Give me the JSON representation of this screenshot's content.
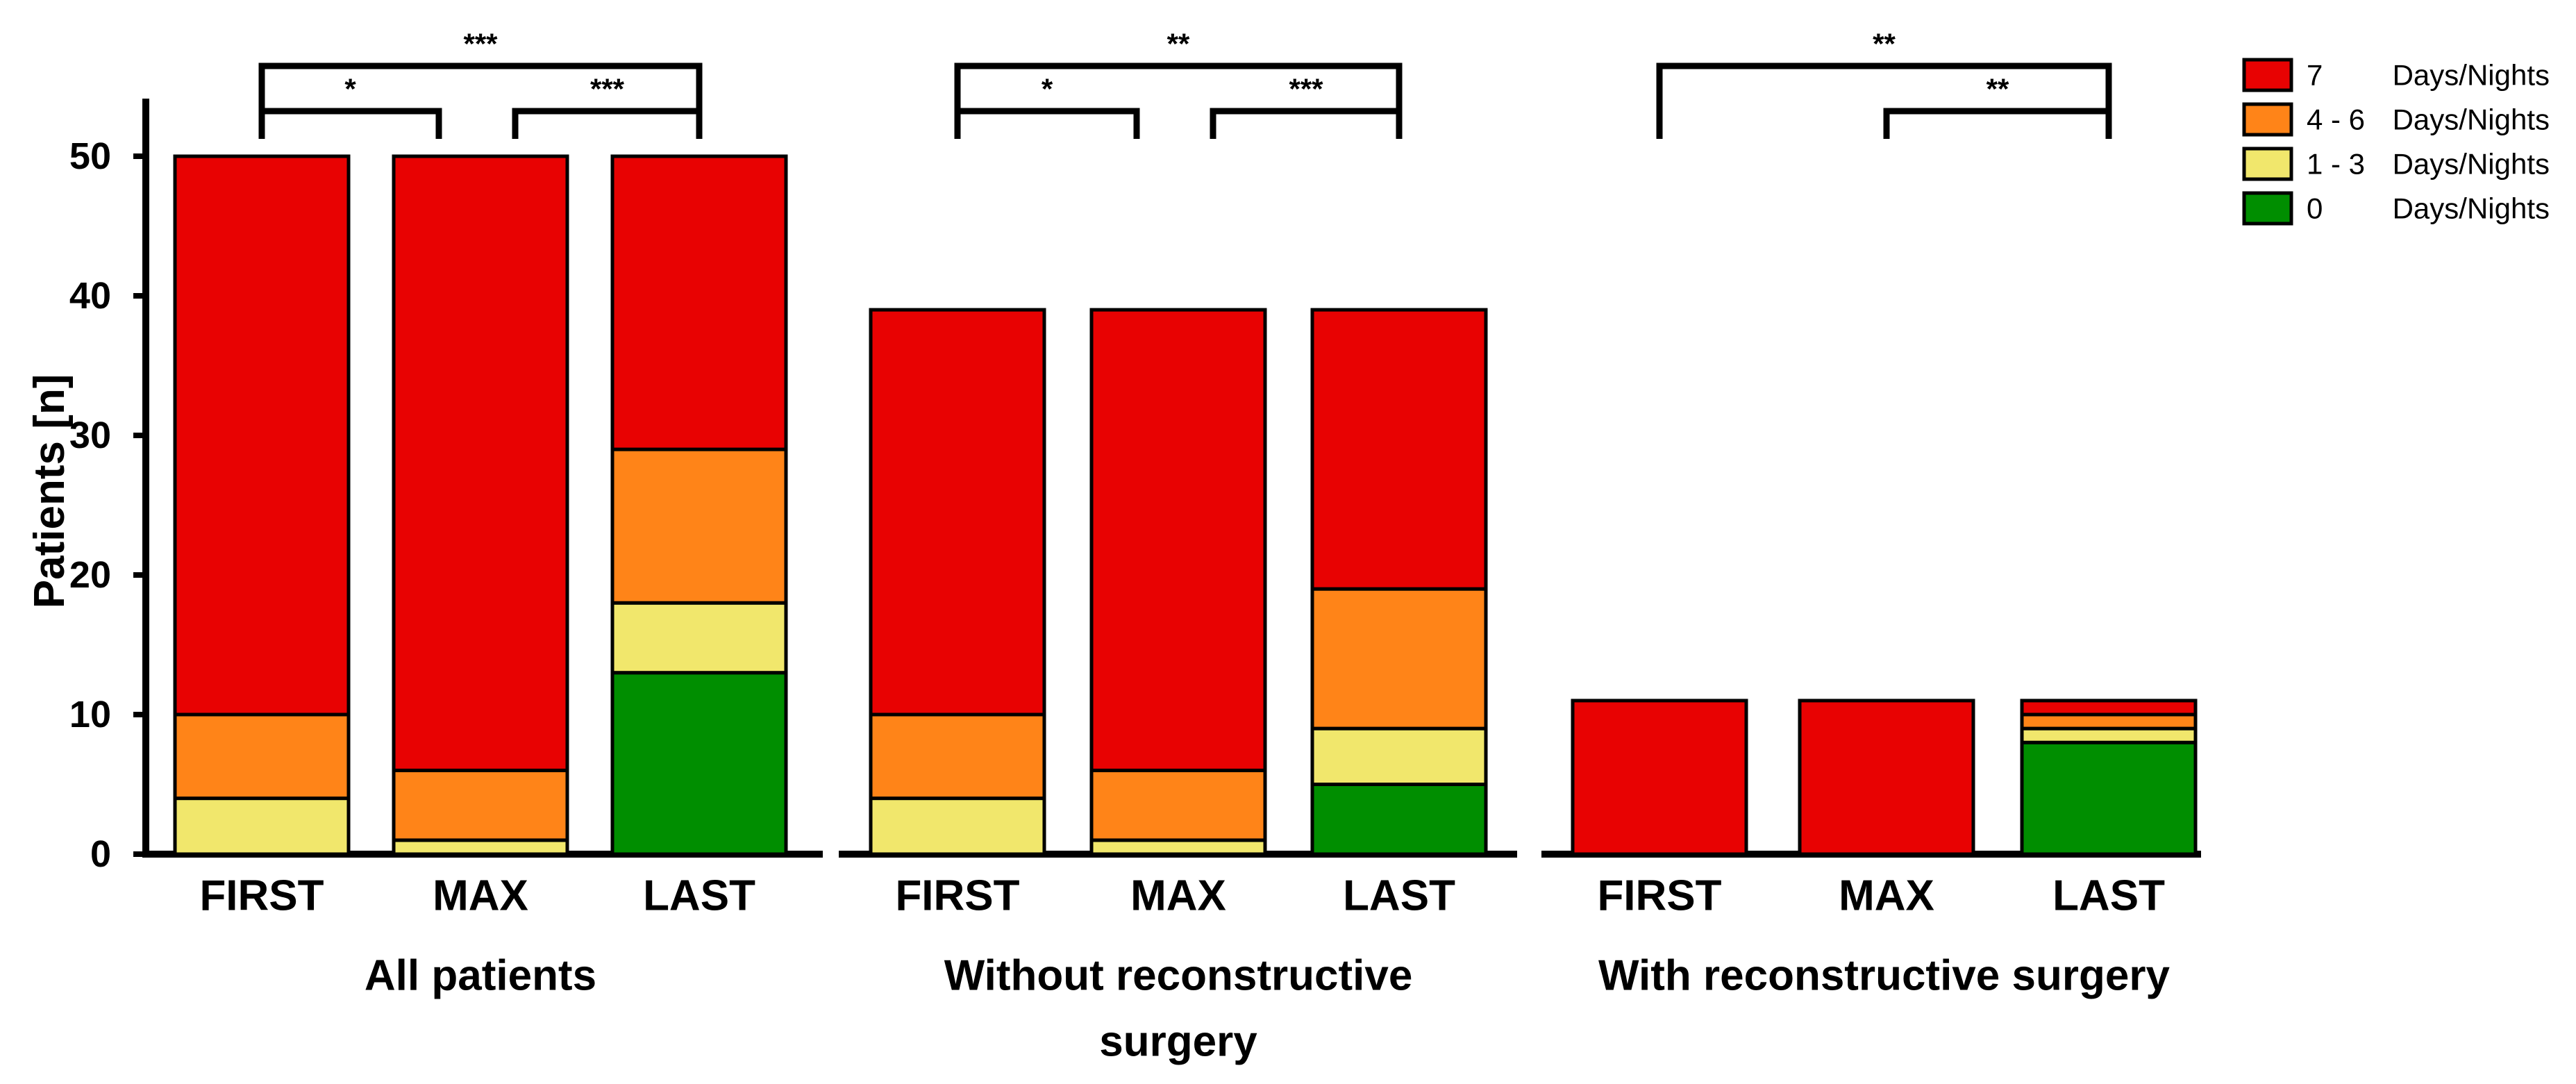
{
  "chart_data": {
    "type": "bar",
    "stacked": true,
    "ylabel": "Patients [n]",
    "ylim": [
      0,
      52
    ],
    "yticks": [
      0,
      10,
      20,
      30,
      40,
      50
    ],
    "legend": {
      "placement": "top-right",
      "entries": [
        {
          "key": "d7",
          "num": "7",
          "unit": "Days/Nights",
          "color": "#E80202"
        },
        {
          "key": "d46",
          "num": "4 - 6",
          "unit": "Days/Nights",
          "color": "#FF8418"
        },
        {
          "key": "d13",
          "num": "1 - 3",
          "unit": "Days/Nights",
          "color": "#F1E76C"
        },
        {
          "key": "d0",
          "num": "0",
          "unit": "Days/Nights",
          "color": "#008E00"
        }
      ]
    },
    "panels": [
      {
        "title_lines": [
          "All patients"
        ],
        "categories": [
          "FIRST",
          "MAX",
          "LAST"
        ],
        "series": [
          {
            "key": "d0",
            "name": "0 Days/Nights",
            "values": [
              0,
              0,
              13
            ]
          },
          {
            "key": "d13",
            "name": "1 - 3 Days/Nights",
            "values": [
              4,
              1,
              5
            ]
          },
          {
            "key": "d46",
            "name": "4 - 6 Days/Nights",
            "values": [
              6,
              5,
              11
            ]
          },
          {
            "key": "d7",
            "name": "7 Days/Nights",
            "values": [
              40,
              44,
              21
            ]
          }
        ],
        "significance": [
          {
            "from": 0,
            "to": 2,
            "label": "***",
            "level": 2
          },
          {
            "from": 0,
            "to": 1,
            "label": "*",
            "level": 1
          },
          {
            "from": 1,
            "to": 2,
            "label": "***",
            "level": 1
          }
        ]
      },
      {
        "title_lines": [
          "Without reconstructive",
          "surgery"
        ],
        "categories": [
          "FIRST",
          "MAX",
          "LAST"
        ],
        "series": [
          {
            "key": "d0",
            "name": "0 Days/Nights",
            "values": [
              0,
              0,
              5
            ]
          },
          {
            "key": "d13",
            "name": "1 - 3 Days/Nights",
            "values": [
              4,
              1,
              4
            ]
          },
          {
            "key": "d46",
            "name": "4 - 6 Days/Nights",
            "values": [
              6,
              5,
              10
            ]
          },
          {
            "key": "d7",
            "name": "7 Days/Nights",
            "values": [
              29,
              33,
              20
            ]
          }
        ],
        "significance": [
          {
            "from": 0,
            "to": 2,
            "label": "**",
            "level": 2
          },
          {
            "from": 0,
            "to": 1,
            "label": "*",
            "level": 1
          },
          {
            "from": 1,
            "to": 2,
            "label": "***",
            "level": 1
          }
        ]
      },
      {
        "title_lines": [
          "With reconstructive surgery"
        ],
        "categories": [
          "FIRST",
          "MAX",
          "LAST"
        ],
        "series": [
          {
            "key": "d0",
            "name": "0 Days/Nights",
            "values": [
              0,
              0,
              8
            ]
          },
          {
            "key": "d13",
            "name": "1 - 3 Days/Nights",
            "values": [
              0,
              0,
              1
            ]
          },
          {
            "key": "d46",
            "name": "4 - 6 Days/Nights",
            "values": [
              0,
              0,
              1
            ]
          },
          {
            "key": "d7",
            "name": "7 Days/Nights",
            "values": [
              11,
              11,
              1
            ]
          }
        ],
        "significance": [
          {
            "from": 0,
            "to": 2,
            "label": "**",
            "level": 2
          },
          {
            "from": 1,
            "to": 2,
            "label": "**",
            "level": 1
          }
        ]
      }
    ]
  }
}
